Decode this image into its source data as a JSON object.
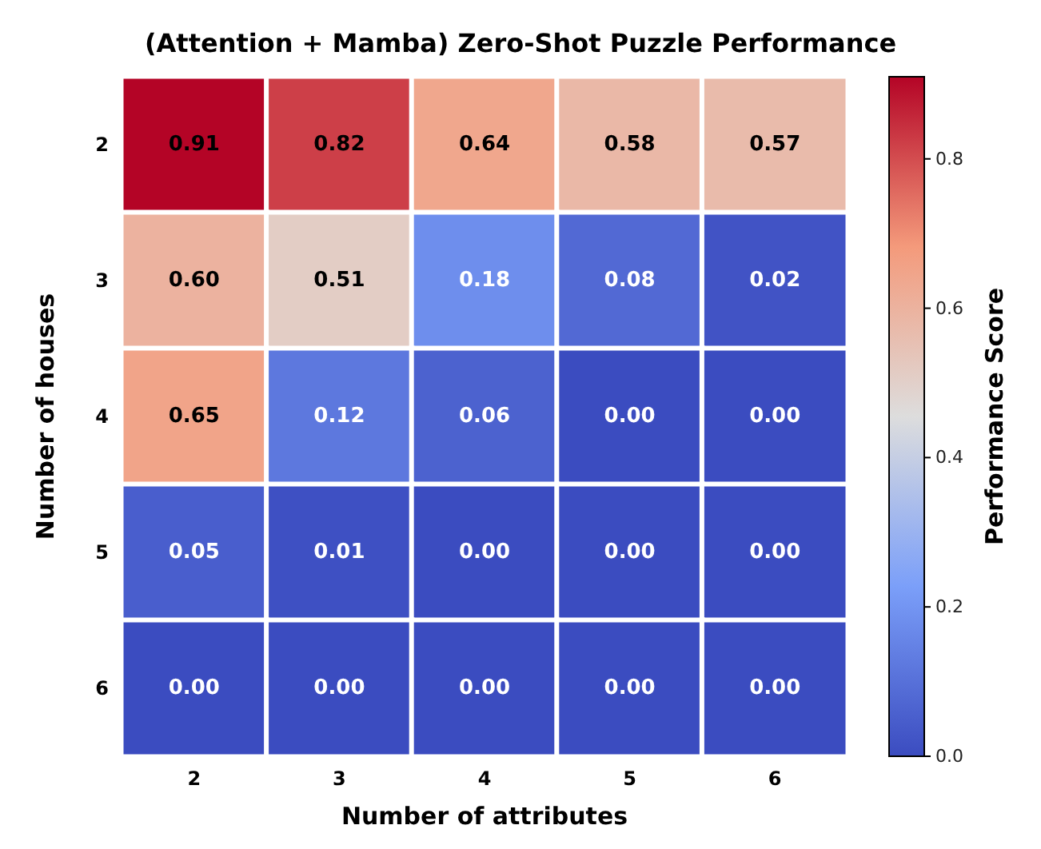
{
  "chart_data": {
    "type": "heatmap",
    "title": "(Attention + Mamba) Zero-Shot Puzzle Performance",
    "xlabel": "Number of attributes",
    "ylabel": "Number of houses",
    "clabel": "Performance Score",
    "categories": [
      "2",
      "3",
      "4",
      "5",
      "6"
    ],
    "y_categories": [
      "2",
      "3",
      "4",
      "5",
      "6"
    ],
    "cells": [
      [
        0.91,
        0.82,
        0.64,
        0.58,
        0.57
      ],
      [
        0.6,
        0.51,
        0.18,
        0.08,
        0.02
      ],
      [
        0.65,
        0.12,
        0.06,
        0.0,
        0.0
      ],
      [
        0.05,
        0.01,
        0.0,
        0.0,
        0.0
      ],
      [
        0.0,
        0.0,
        0.0,
        0.0,
        0.0
      ]
    ],
    "cell_labels": [
      [
        "0.91",
        "0.82",
        "0.64",
        "0.58",
        "0.57"
      ],
      [
        "0.60",
        "0.51",
        "0.18",
        "0.08",
        "0.02"
      ],
      [
        "0.65",
        "0.12",
        "0.06",
        "0.00",
        "0.00"
      ],
      [
        "0.05",
        "0.01",
        "0.00",
        "0.00",
        "0.00"
      ],
      [
        "0.00",
        "0.00",
        "0.00",
        "0.00",
        "0.00"
      ]
    ],
    "clim": [
      0,
      0.91
    ],
    "cticks": [
      {
        "value": 0,
        "label": "0.0"
      },
      {
        "value": 0.2,
        "label": "0.2"
      },
      {
        "value": 0.4,
        "label": "0.4"
      },
      {
        "value": 0.6,
        "label": "0.6"
      },
      {
        "value": 0.8,
        "label": "0.8"
      }
    ],
    "data_labels": true
  }
}
